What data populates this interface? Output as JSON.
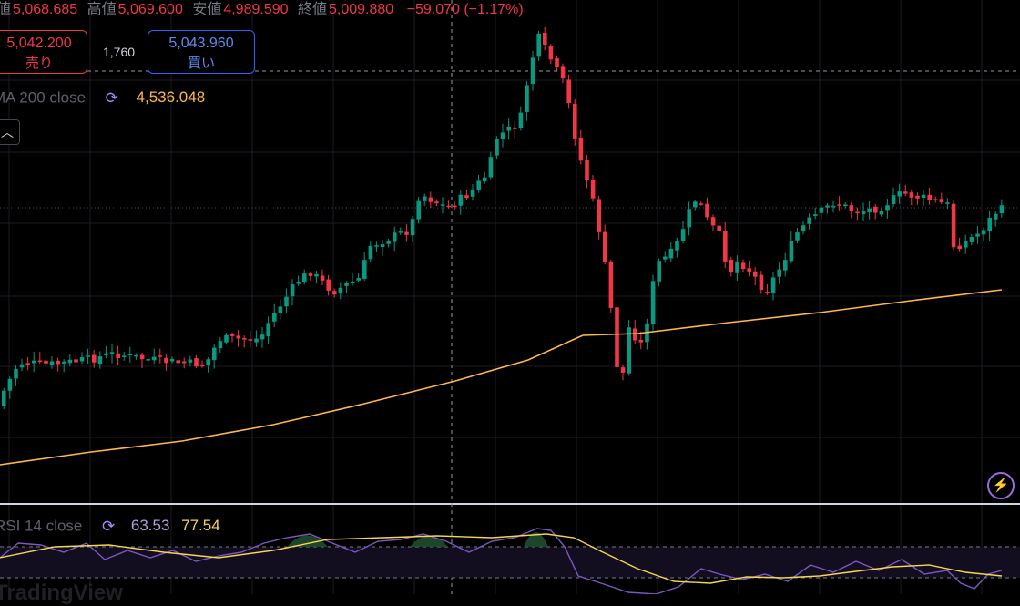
{
  "ohlc": {
    "open_label": "値",
    "open": "5,068.685",
    "high_label": "高値",
    "high": "5,069.600",
    "low_label": "安値",
    "low": "4,989.590",
    "close_label": "終値",
    "close": "5,009.880",
    "change": "−59.070 (−1.17%)"
  },
  "trade": {
    "sell_price": "5,042.200",
    "sell_label": "売り",
    "spread": "1,760",
    "buy_price": "5,043.960",
    "buy_label": "買い"
  },
  "ma": {
    "name": "MA 200 close",
    "value": "4,536.048"
  },
  "rsi": {
    "name": "RSI 14 close",
    "value": "63.53",
    "ma_value": "77.54"
  },
  "watermark": "TradingView",
  "icons": {
    "refresh": "refresh-icon",
    "collapse": "chevron-up-icon",
    "bolt": "lightning-icon"
  },
  "colors": {
    "up": "#089981",
    "down": "#f23645",
    "ma": "#ffb74d",
    "rsi_line": "#7e57c2",
    "rsi_ma": "#f5d651",
    "buy": "#2962ff"
  }
}
